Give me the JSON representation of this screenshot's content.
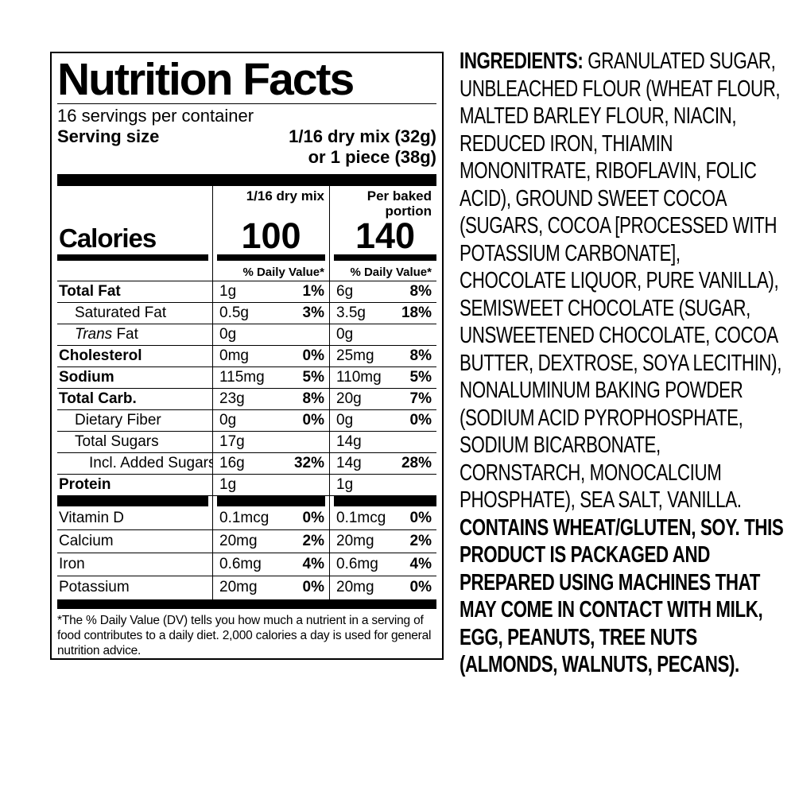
{
  "label": {
    "title": "Nutrition Facts",
    "servings_per_container": "16 servings per container",
    "serving_size_label": "Serving size",
    "serving_size_line1": "1/16 dry mix (32g)",
    "serving_size_line2": "or 1 piece (38g)",
    "column_headers": {
      "dry": "1/16 dry mix",
      "baked": "Per baked portion"
    },
    "calories": {
      "label": "Calories",
      "dry": "100",
      "baked": "140"
    },
    "daily_value_header": "% Daily Value*",
    "nutrient_rows": [
      {
        "name": "Total Fat",
        "bold": true,
        "indent": 0,
        "dry_amt": "1g",
        "dry_dv": "1%",
        "baked_amt": "6g",
        "baked_dv": "8%"
      },
      {
        "name": "Saturated Fat",
        "bold": false,
        "indent": 1,
        "dry_amt": "0.5g",
        "dry_dv": "3%",
        "baked_amt": "3.5g",
        "baked_dv": "18%"
      },
      {
        "name_italic": "Trans",
        "name": " Fat",
        "bold": false,
        "indent": 1,
        "dry_amt": "0g",
        "dry_dv": "",
        "baked_amt": "0g",
        "baked_dv": ""
      },
      {
        "name": "Cholesterol",
        "bold": true,
        "indent": 0,
        "dry_amt": "0mg",
        "dry_dv": "0%",
        "baked_amt": "25mg",
        "baked_dv": "8%"
      },
      {
        "name": "Sodium",
        "bold": true,
        "indent": 0,
        "dry_amt": "115mg",
        "dry_dv": "5%",
        "baked_amt": "110mg",
        "baked_dv": "5%"
      },
      {
        "name": "Total Carb.",
        "bold": true,
        "indent": 0,
        "dry_amt": "23g",
        "dry_dv": "8%",
        "baked_amt": "20g",
        "baked_dv": "7%"
      },
      {
        "name": "Dietary Fiber",
        "bold": false,
        "indent": 1,
        "dry_amt": "0g",
        "dry_dv": "0%",
        "baked_amt": "0g",
        "baked_dv": "0%"
      },
      {
        "name": "Total Sugars",
        "bold": false,
        "indent": 1,
        "dry_amt": "17g",
        "dry_dv": "",
        "baked_amt": "14g",
        "baked_dv": ""
      },
      {
        "name": "Incl. Added Sugars",
        "bold": false,
        "indent": 2,
        "dry_amt": "16g",
        "dry_dv": "32%",
        "baked_amt": "14g",
        "baked_dv": "28%"
      },
      {
        "name": "Protein",
        "bold": true,
        "indent": 0,
        "dry_amt": "1g",
        "dry_dv": "",
        "baked_amt": "1g",
        "baked_dv": ""
      }
    ],
    "vitamin_rows": [
      {
        "name": "Vitamin D",
        "dry_amt": "0.1mcg",
        "dry_dv": "0%",
        "baked_amt": "0.1mcg",
        "baked_dv": "0%"
      },
      {
        "name": "Calcium",
        "dry_amt": "20mg",
        "dry_dv": "2%",
        "baked_amt": "20mg",
        "baked_dv": "2%"
      },
      {
        "name": "Iron",
        "dry_amt": "0.6mg",
        "dry_dv": "4%",
        "baked_amt": "0.6mg",
        "baked_dv": "4%"
      },
      {
        "name": "Potassium",
        "dry_amt": "20mg",
        "dry_dv": "0%",
        "baked_amt": "20mg",
        "baked_dv": "0%"
      }
    ],
    "footnote": "*The % Daily Value (DV) tells you how much a nutrient in a serving of food contributes to a daily diet. 2,000 calories a day is used for general nutrition advice."
  },
  "ingredients": {
    "heading": "INGREDIENTS:",
    "body": " GRANULATED SUGAR, UNBLEACHED FLOUR (WHEAT FLOUR, MALTED BARLEY FLOUR, NIACIN, REDUCED IRON, THIAMIN MONONITRATE, RIBOFLAVIN, FOLIC ACID), GROUND SWEET COCOA (SUGARS, COCOA [PROCESSED WITH POTASSIUM CARBONATE], CHOCOLATE LIQUOR, PURE VANILLA), SEMISWEET CHOCOLATE (SUGAR, UNSWEETENED CHOCOLATE, COCOA BUTTER, DEXTROSE, SOYA LECITHIN), NONALUMINUM BAKING POWDER (SODIUM ACID PYROPHOSPHATE, SODIUM BICARBONATE, CORNSTARCH, MONOCALCIUM PHOSPHATE), SEA SALT, VANILLA. ",
    "allergen": "CONTAINS WHEAT/GLUTEN, SOY. THIS PRODUCT IS PACKAGED AND PREPARED USING MACHINES THAT MAY COME IN CONTACT WITH MILK, EGG, PEANUTS, TREE NUTS (ALMONDS, WALNUTS, PECANS)."
  },
  "colors": {
    "text": "#000000",
    "background": "#ffffff"
  }
}
